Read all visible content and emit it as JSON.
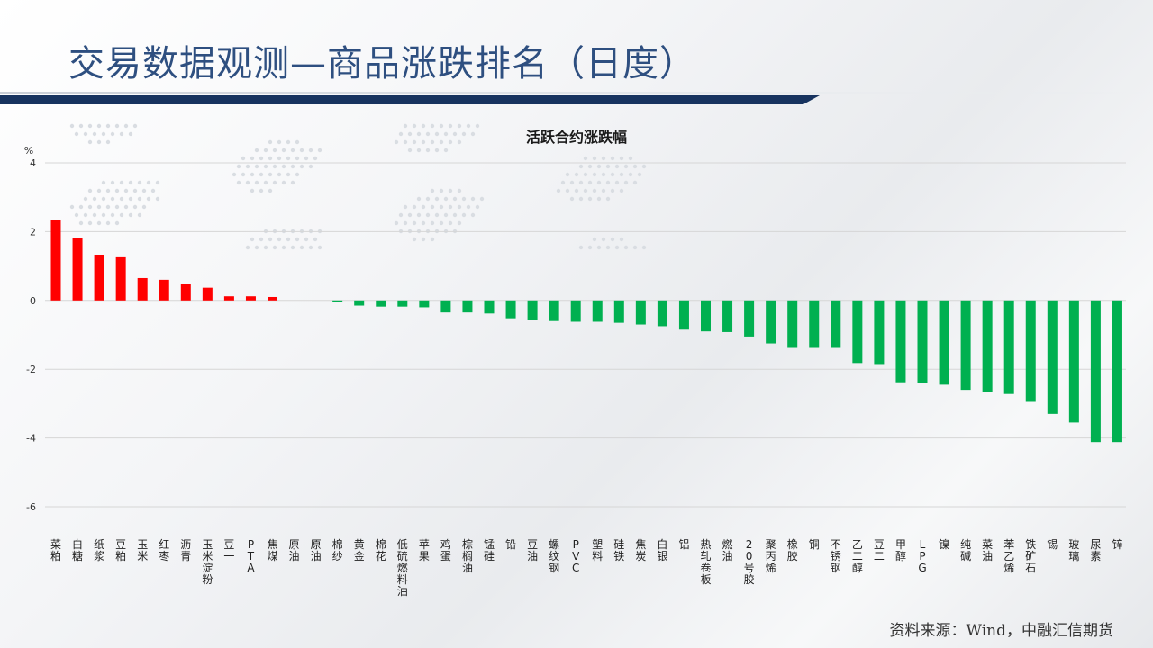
{
  "header": {
    "title": "交易数据观测—商品涨跌排名（日度）"
  },
  "footer": {
    "source": "资料来源：Wind，中融汇信期货"
  },
  "colors": {
    "up": "#ff0000",
    "down": "#00b050",
    "title": "#2e4f80",
    "rule": "#17335f"
  },
  "chart_data": {
    "type": "bar",
    "title": "活跃合约涨跌幅",
    "ylabel": "%",
    "xlabel": "",
    "ylim": [
      -6,
      4
    ],
    "yticks": [
      -6,
      -4,
      -2,
      0,
      2,
      4
    ],
    "grid": true,
    "legend": "none",
    "categories": [
      "菜粕",
      "白糖",
      "纸浆",
      "豆粕",
      "玉米",
      "红枣",
      "沥青",
      "玉米淀粉",
      "豆一",
      "PTA",
      "焦煤",
      "原油",
      "原油",
      "棉纱",
      "黄金",
      "棉花",
      "低硫燃料油",
      "苹果",
      "鸡蛋",
      "棕榈油",
      "锰硅",
      "铅",
      "豆油",
      "螺纹钢",
      "PVC",
      "塑料",
      "硅铁",
      "焦炭",
      "白银",
      "铝",
      "热轧卷板",
      "燃油",
      "20号胶",
      "聚丙烯",
      "橡胶",
      "铜",
      "不锈钢",
      "乙二醇",
      "豆二",
      "甲醇",
      "LPG",
      "镍",
      "纯碱",
      "菜油",
      "苯乙烯",
      "铁矿石",
      "锡",
      "玻璃",
      "尿素",
      "锌"
    ],
    "values": [
      2.33,
      1.82,
      1.33,
      1.28,
      0.65,
      0.6,
      0.47,
      0.37,
      0.12,
      0.12,
      0.1,
      0.0,
      0.0,
      -0.05,
      -0.15,
      -0.18,
      -0.18,
      -0.2,
      -0.35,
      -0.35,
      -0.38,
      -0.52,
      -0.58,
      -0.6,
      -0.62,
      -0.62,
      -0.65,
      -0.7,
      -0.75,
      -0.85,
      -0.9,
      -0.92,
      -1.05,
      -1.25,
      -1.38,
      -1.38,
      -1.38,
      -1.82,
      -1.85,
      -2.38,
      -2.4,
      -2.45,
      -2.6,
      -2.65,
      -2.72,
      -2.95,
      -3.3,
      -3.55,
      -4.12,
      -4.12
    ]
  }
}
